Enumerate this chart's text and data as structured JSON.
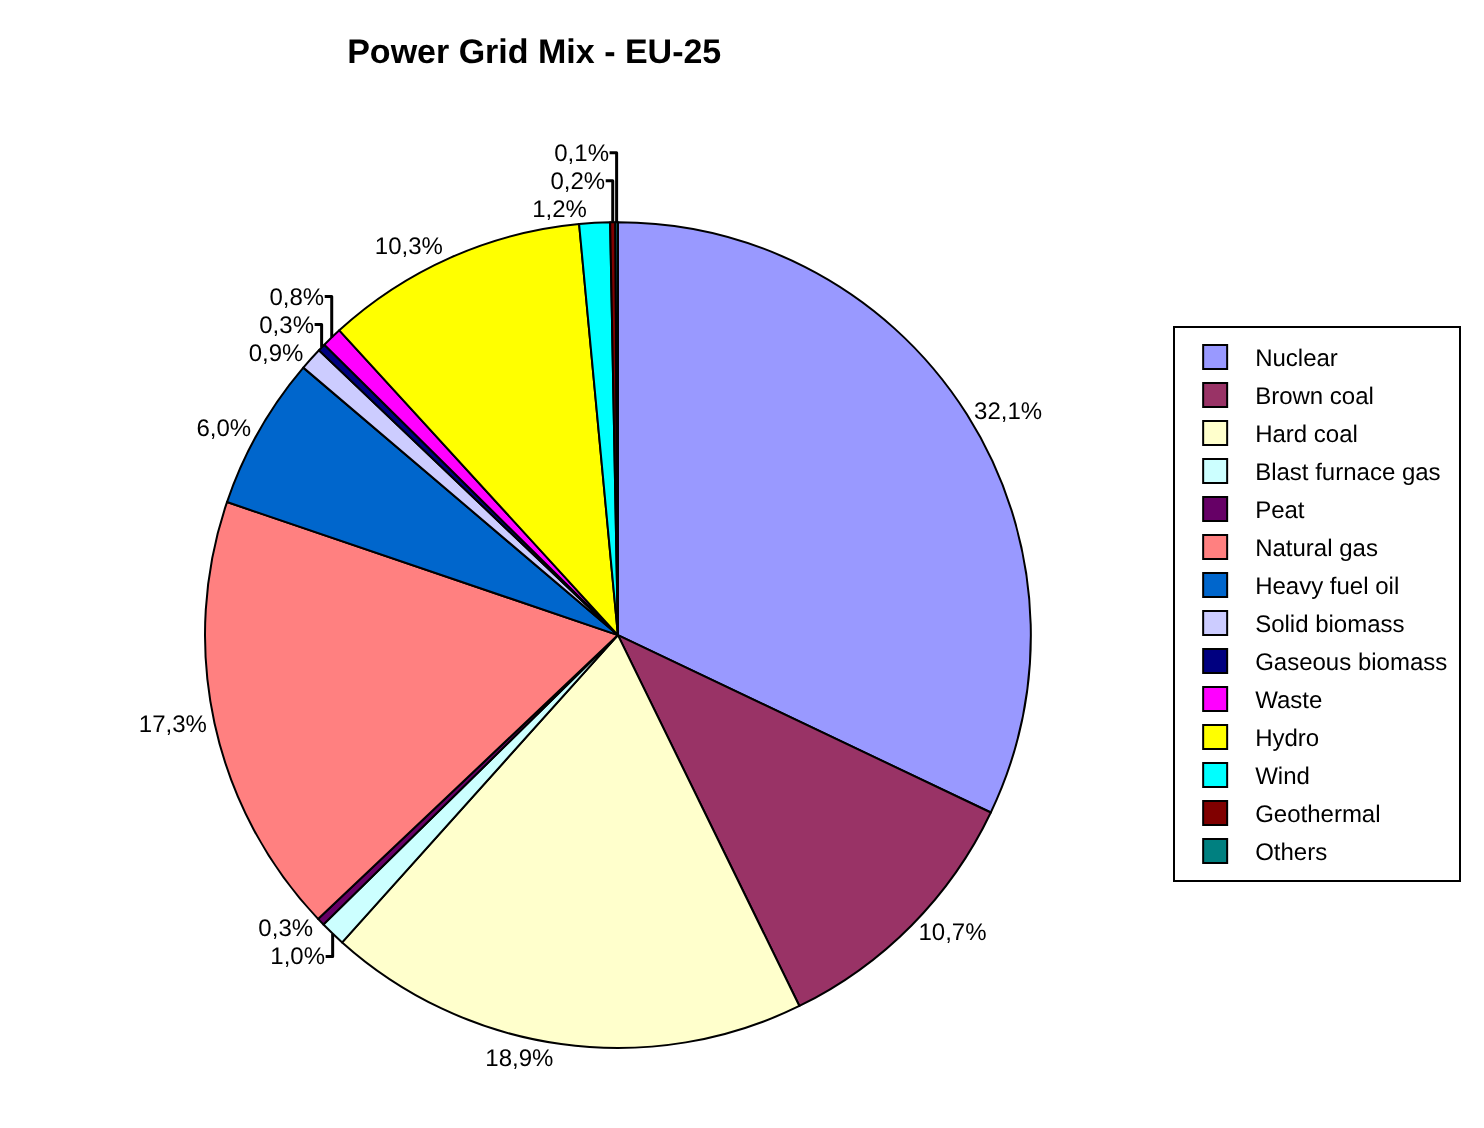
{
  "chart_data": {
    "type": "pie",
    "title": "Power Grid Mix - EU-25",
    "categories": [
      "Nuclear",
      "Brown coal",
      "Hard coal",
      "Blast furnace gas",
      "Peat",
      "Natural gas",
      "Heavy fuel oil",
      "Solid biomass",
      "Gaseous biomass",
      "Waste",
      "Hydro",
      "Wind",
      "Geothermal",
      "Others"
    ],
    "values": [
      32.1,
      10.7,
      18.9,
      1.0,
      0.3,
      17.3,
      6.0,
      0.9,
      0.3,
      0.8,
      10.3,
      1.2,
      0.2,
      0.1
    ],
    "value_labels": [
      "32,1%",
      "10,7%",
      "18,9%",
      "1,0%",
      "0,3%",
      "17,3%",
      "6,0%",
      "0,9%",
      "0,3%",
      "0,8%",
      "10,3%",
      "1,2%",
      "0,2%",
      "0,1%"
    ],
    "colors": [
      "#9999ff",
      "#993366",
      "#ffffcc",
      "#ccffff",
      "#660066",
      "#ff8080",
      "#0066cc",
      "#ccccff",
      "#000080",
      "#ff00ff",
      "#ffff00",
      "#00ffff",
      "#800000",
      "#008080"
    ],
    "legend": "right"
  }
}
